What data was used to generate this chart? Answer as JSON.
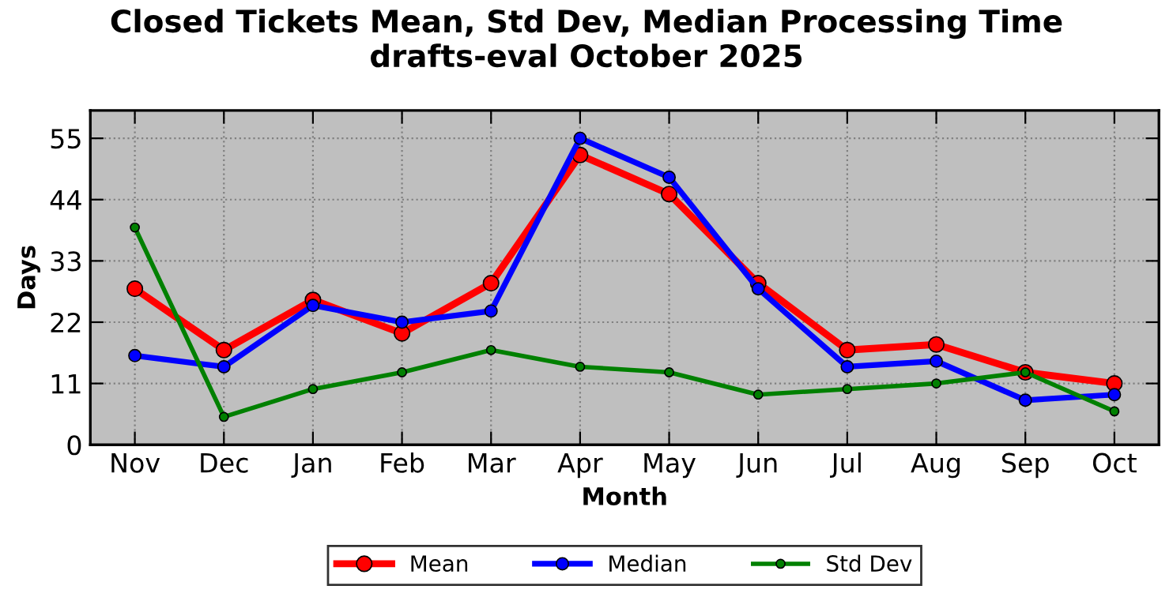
{
  "chart_data": {
    "type": "line",
    "title": "Closed Tickets Mean, Std Dev, Median Processing Time\ndrafts-eval October 2025",
    "xlabel": "Month",
    "ylabel": "Days",
    "categories": [
      "Nov",
      "Dec",
      "Jan",
      "Feb",
      "Mar",
      "Apr",
      "May",
      "Jun",
      "Jul",
      "Aug",
      "Sep",
      "Oct"
    ],
    "series": [
      {
        "name": "Mean",
        "color": "#ff0000",
        "values": [
          28,
          17,
          26,
          20,
          29,
          52,
          45,
          29,
          17,
          18,
          13,
          11
        ]
      },
      {
        "name": "Median",
        "color": "#0000ff",
        "values": [
          16,
          14,
          25,
          22,
          24,
          55,
          48,
          28,
          14,
          15,
          8,
          9
        ]
      },
      {
        "name": "Std Dev",
        "color": "#008000",
        "values": [
          39,
          5,
          10,
          13,
          17,
          14,
          13,
          9,
          10,
          11,
          13,
          6
        ]
      }
    ],
    "ylim": [
      0,
      60
    ],
    "yticks": [
      0,
      11,
      22,
      33,
      44,
      55
    ],
    "grid": true,
    "legend": "bottom",
    "marker": "circle",
    "line_style": "solid"
  }
}
